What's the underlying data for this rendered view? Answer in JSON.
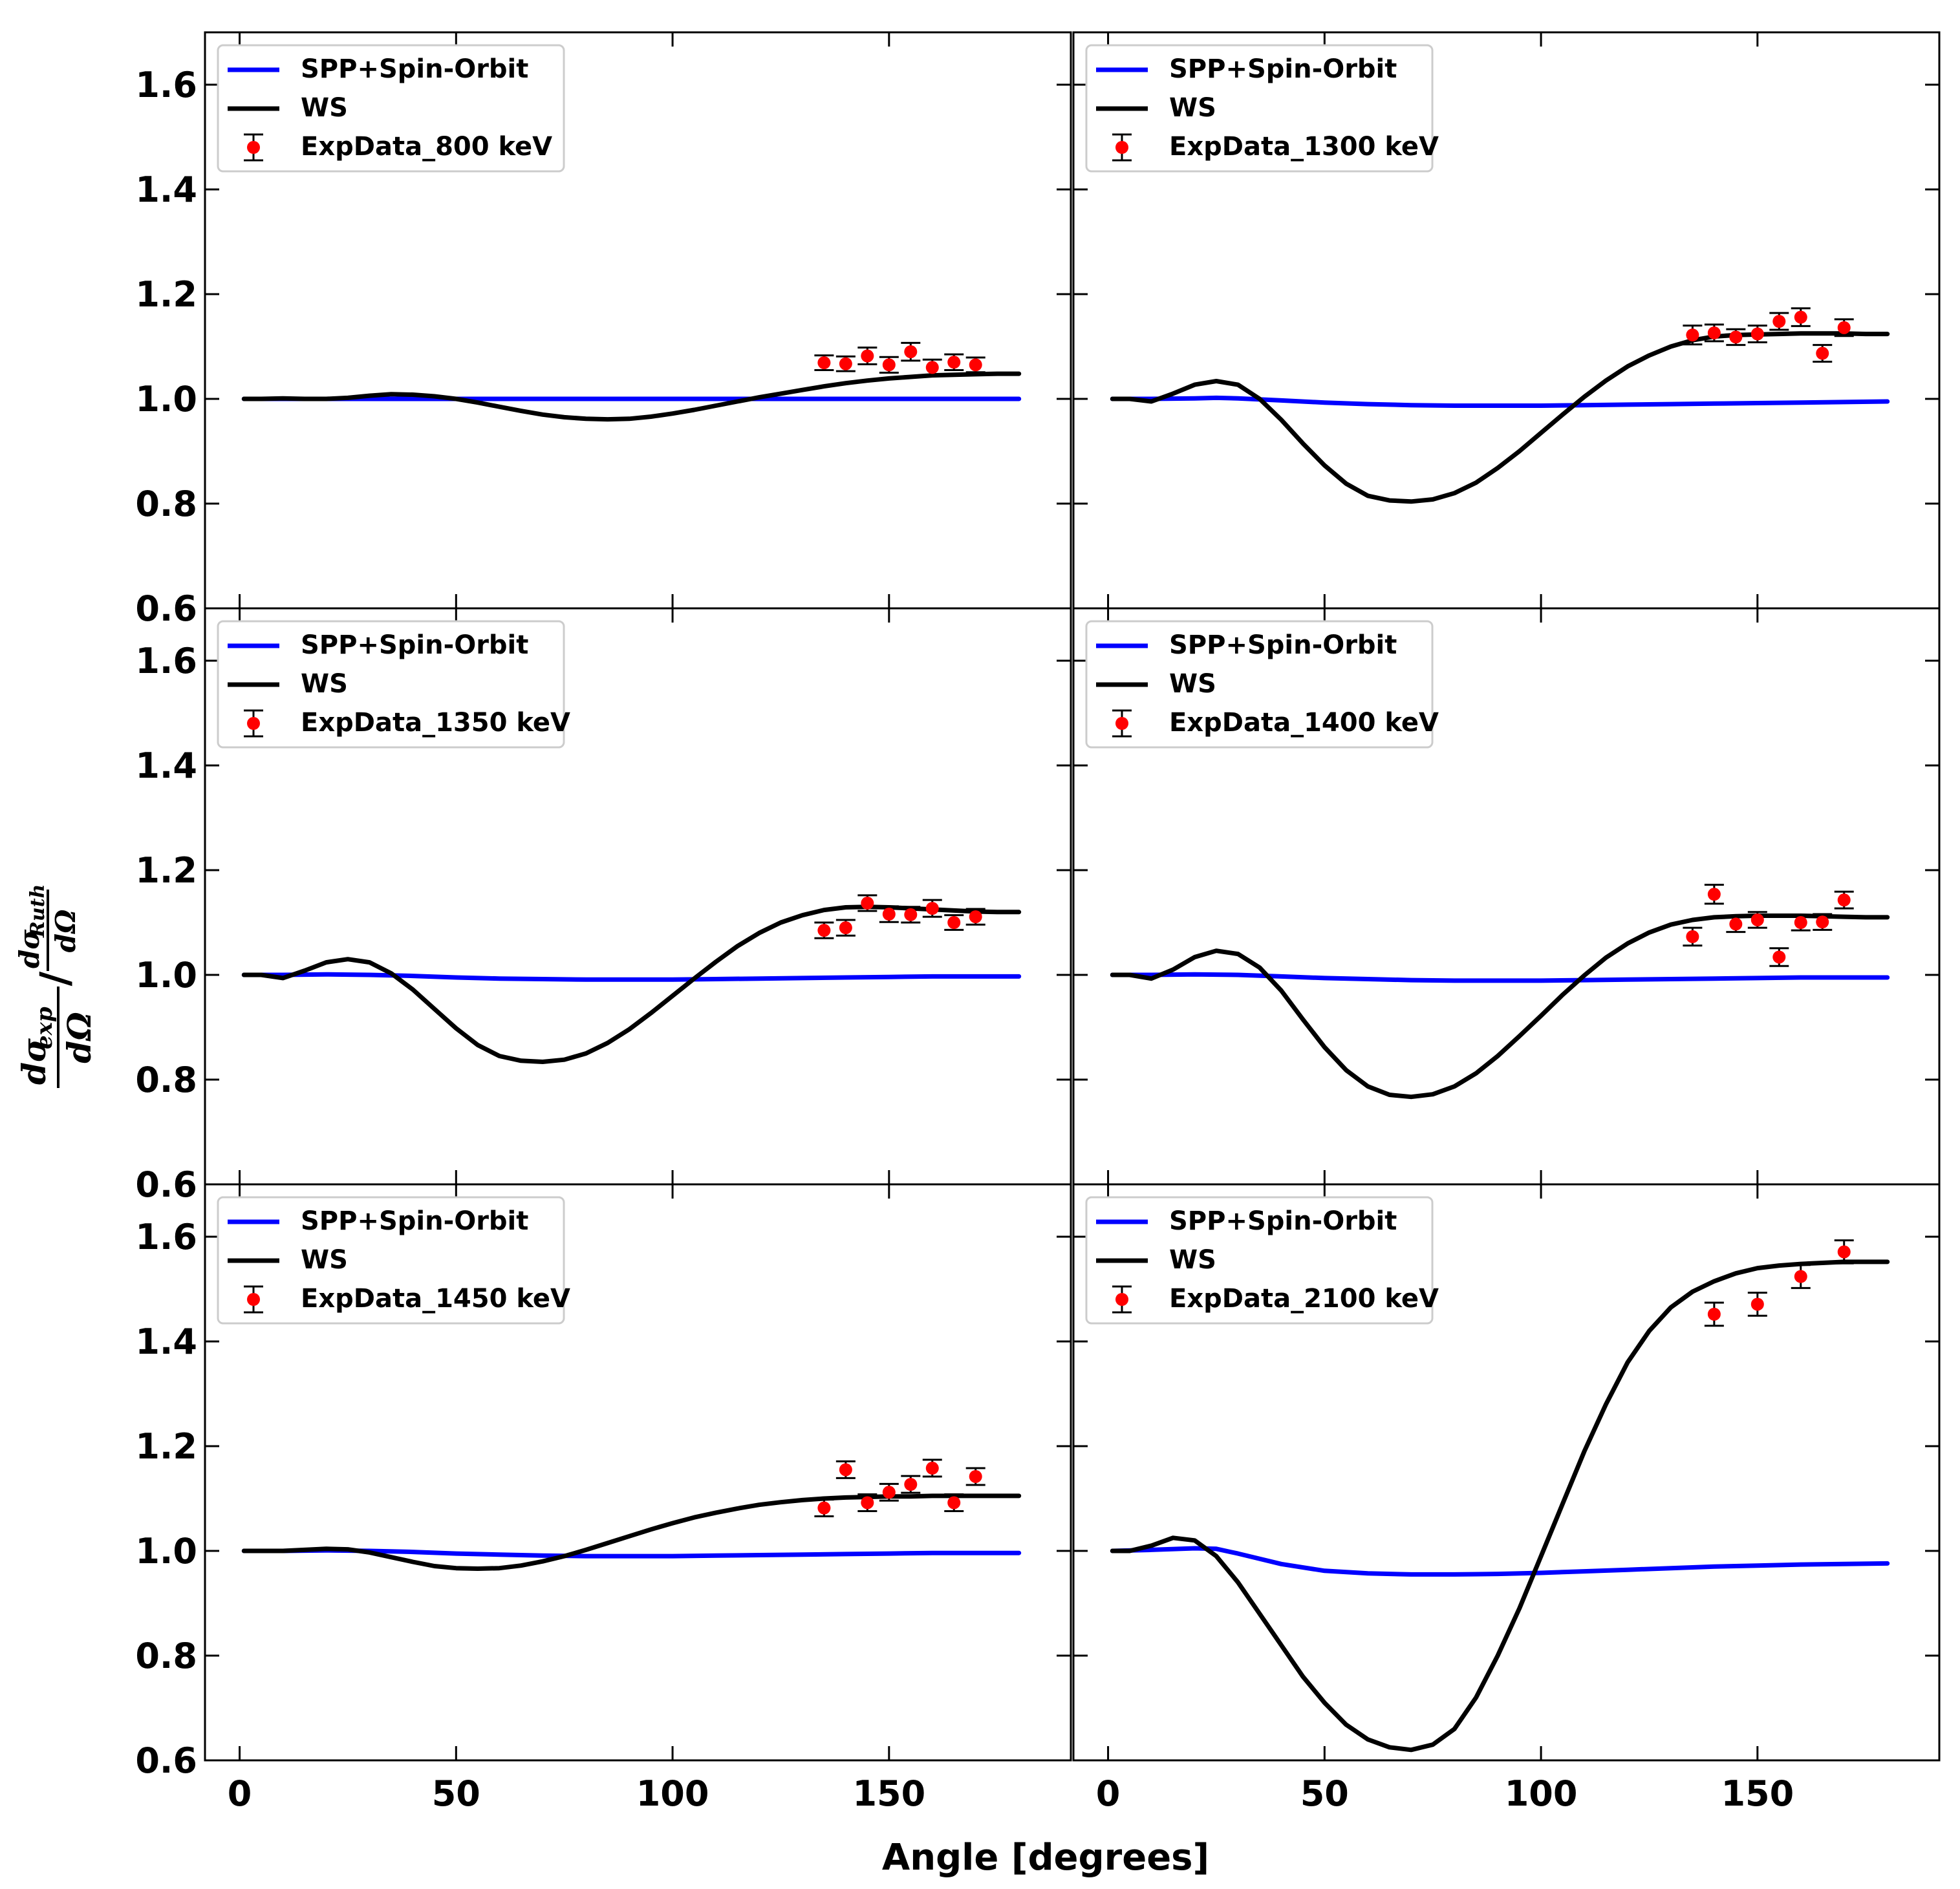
{
  "chart_data": {
    "type": "line",
    "layout": "3x2 grid, shared axes",
    "xlabel": "Angle [degrees]",
    "ylabel": {
      "num1": "dσ",
      "num1_sub": "exp",
      "den1": "dΩ",
      "sep": "/",
      "num2": "dσ",
      "num2_sub": "Ruth",
      "den2": "dΩ"
    },
    "xlim": [
      -8,
      192
    ],
    "ylim": [
      0.6,
      1.7
    ],
    "xticks": [
      0,
      50,
      100,
      150
    ],
    "yticks": [
      0.6,
      0.8,
      1.0,
      1.2,
      1.4,
      1.6
    ],
    "ytick_labels": [
      "0.6",
      "0.8",
      "1.0",
      "1.2",
      "1.4",
      "1.6"
    ],
    "series_styles": {
      "SPP+Spin-Orbit": "#0000ff",
      "WS": "#000000",
      "ExpData": "#ff0000"
    },
    "panels": [
      {
        "energy": "800 keV",
        "legend": [
          "SPP+Spin-Orbit",
          "WS",
          "ExpData_800 keV"
        ],
        "spp_x": [
          1,
          30,
          60,
          90,
          120,
          150,
          180
        ],
        "spp_y": [
          1.0,
          1.0,
          1.0,
          1.0,
          1.0,
          1.0,
          1.0
        ],
        "ws_x": [
          1,
          5,
          10,
          15,
          20,
          25,
          30,
          35,
          40,
          45,
          50,
          55,
          60,
          65,
          70,
          75,
          80,
          85,
          90,
          95,
          100,
          105,
          110,
          115,
          120,
          125,
          130,
          135,
          140,
          145,
          150,
          155,
          160,
          165,
          170,
          175,
          180
        ],
        "ws_y": [
          1.0,
          1.0,
          1.001,
          1.0,
          1.0,
          1.002,
          1.006,
          1.009,
          1.008,
          1.005,
          1.0,
          0.993,
          0.985,
          0.977,
          0.97,
          0.965,
          0.962,
          0.961,
          0.962,
          0.966,
          0.972,
          0.979,
          0.987,
          0.995,
          1.003,
          1.01,
          1.017,
          1.024,
          1.03,
          1.035,
          1.039,
          1.042,
          1.045,
          1.046,
          1.047,
          1.048,
          1.048
        ],
        "exp_x": [
          135,
          140,
          145,
          150,
          155,
          160,
          165,
          170
        ],
        "exp_y": [
          1.069,
          1.067,
          1.082,
          1.065,
          1.09,
          1.06,
          1.07,
          1.065
        ],
        "exp_err": [
          0.014,
          0.014,
          0.016,
          0.015,
          0.017,
          0.015,
          0.015,
          0.014
        ]
      },
      {
        "energy": "1300 keV",
        "legend": [
          "SPP+Spin-Orbit",
          "WS",
          "ExpData_1300 keV"
        ],
        "spp_x": [
          1,
          10,
          20,
          25,
          30,
          40,
          50,
          60,
          70,
          80,
          90,
          100,
          110,
          120,
          130,
          140,
          150,
          160,
          170,
          180
        ],
        "spp_y": [
          1.0,
          1.0,
          1.001,
          1.002,
          1.001,
          0.997,
          0.993,
          0.99,
          0.988,
          0.987,
          0.987,
          0.987,
          0.988,
          0.989,
          0.99,
          0.991,
          0.992,
          0.993,
          0.994,
          0.995
        ],
        "ws_x": [
          1,
          5,
          10,
          15,
          20,
          25,
          30,
          35,
          40,
          45,
          50,
          55,
          60,
          65,
          70,
          75,
          80,
          85,
          90,
          95,
          100,
          105,
          110,
          115,
          120,
          125,
          130,
          135,
          140,
          145,
          150,
          155,
          160,
          165,
          170,
          175,
          180
        ],
        "ws_y": [
          1.0,
          1.0,
          0.995,
          1.01,
          1.027,
          1.034,
          1.027,
          1.0,
          0.96,
          0.915,
          0.873,
          0.838,
          0.815,
          0.806,
          0.804,
          0.808,
          0.82,
          0.84,
          0.868,
          0.9,
          0.935,
          0.97,
          1.004,
          1.035,
          1.062,
          1.083,
          1.1,
          1.112,
          1.119,
          1.122,
          1.123,
          1.124,
          1.125,
          1.125,
          1.125,
          1.124,
          1.124
        ],
        "exp_x": [
          135,
          140,
          145,
          150,
          155,
          160,
          165,
          170
        ],
        "exp_y": [
          1.122,
          1.126,
          1.118,
          1.124,
          1.148,
          1.156,
          1.087,
          1.136
        ],
        "exp_err": [
          0.018,
          0.016,
          0.015,
          0.016,
          0.016,
          0.017,
          0.016,
          0.016
        ]
      },
      {
        "energy": "1350 keV",
        "legend": [
          "SPP+Spin-Orbit",
          "WS",
          "ExpData_1350 keV"
        ],
        "spp_x": [
          1,
          10,
          20,
          30,
          40,
          50,
          60,
          70,
          80,
          90,
          100,
          110,
          120,
          130,
          140,
          150,
          160,
          170,
          180
        ],
        "spp_y": [
          1.0,
          1.0,
          1.001,
          1.0,
          0.998,
          0.995,
          0.993,
          0.992,
          0.991,
          0.991,
          0.991,
          0.992,
          0.993,
          0.994,
          0.995,
          0.996,
          0.997,
          0.997,
          0.997
        ],
        "ws_x": [
          1,
          5,
          10,
          15,
          20,
          25,
          30,
          35,
          40,
          45,
          50,
          55,
          60,
          65,
          70,
          75,
          80,
          85,
          90,
          95,
          100,
          105,
          110,
          115,
          120,
          125,
          130,
          135,
          140,
          145,
          150,
          155,
          160,
          165,
          170,
          175,
          180
        ],
        "ws_y": [
          1.0,
          1.0,
          0.994,
          1.008,
          1.024,
          1.03,
          1.024,
          1.003,
          0.972,
          0.935,
          0.898,
          0.866,
          0.845,
          0.836,
          0.834,
          0.838,
          0.85,
          0.87,
          0.896,
          0.927,
          0.96,
          0.993,
          1.025,
          1.055,
          1.08,
          1.1,
          1.114,
          1.124,
          1.129,
          1.13,
          1.129,
          1.127,
          1.125,
          1.123,
          1.121,
          1.12,
          1.12
        ],
        "exp_x": [
          135,
          140,
          145,
          150,
          155,
          160,
          165,
          170
        ],
        "exp_y": [
          1.085,
          1.09,
          1.137,
          1.116,
          1.115,
          1.127,
          1.1,
          1.111
        ],
        "exp_err": [
          0.015,
          0.015,
          0.015,
          0.015,
          0.015,
          0.016,
          0.014,
          0.015
        ]
      },
      {
        "energy": "1400 keV",
        "legend": [
          "SPP+Spin-Orbit",
          "WS",
          "ExpData_1400 keV"
        ],
        "spp_x": [
          1,
          10,
          20,
          30,
          40,
          50,
          60,
          70,
          80,
          90,
          100,
          110,
          120,
          130,
          140,
          150,
          160,
          170,
          180
        ],
        "spp_y": [
          1.0,
          1.0,
          1.001,
          1.0,
          0.997,
          0.994,
          0.992,
          0.99,
          0.989,
          0.989,
          0.989,
          0.99,
          0.991,
          0.992,
          0.993,
          0.994,
          0.995,
          0.995,
          0.995
        ],
        "ws_x": [
          1,
          5,
          10,
          15,
          20,
          25,
          30,
          35,
          40,
          45,
          50,
          55,
          60,
          65,
          70,
          75,
          80,
          85,
          90,
          95,
          100,
          105,
          110,
          115,
          120,
          125,
          130,
          135,
          140,
          145,
          150,
          155,
          160,
          165,
          170,
          175,
          180
        ],
        "ws_y": [
          1.0,
          1.0,
          0.993,
          1.01,
          1.034,
          1.046,
          1.04,
          1.014,
          0.97,
          0.915,
          0.862,
          0.818,
          0.787,
          0.771,
          0.767,
          0.772,
          0.787,
          0.812,
          0.845,
          0.883,
          0.922,
          0.962,
          0.999,
          1.033,
          1.06,
          1.081,
          1.096,
          1.105,
          1.11,
          1.112,
          1.113,
          1.113,
          1.113,
          1.112,
          1.111,
          1.11,
          1.11
        ],
        "exp_x": [
          135,
          140,
          145,
          150,
          155,
          160,
          165,
          170
        ],
        "exp_y": [
          1.073,
          1.154,
          1.097,
          1.105,
          1.034,
          1.1,
          1.101,
          1.143
        ],
        "exp_err": [
          0.017,
          0.018,
          0.015,
          0.015,
          0.017,
          0.015,
          0.015,
          0.016
        ]
      },
      {
        "energy": "1450 keV",
        "legend": [
          "SPP+Spin-Orbit",
          "WS",
          "ExpData_1450 keV"
        ],
        "spp_x": [
          1,
          10,
          20,
          30,
          40,
          50,
          60,
          70,
          80,
          90,
          100,
          110,
          120,
          130,
          140,
          150,
          160,
          170,
          180
        ],
        "spp_y": [
          1.0,
          1.0,
          1.001,
          1.0,
          0.998,
          0.995,
          0.993,
          0.991,
          0.99,
          0.99,
          0.99,
          0.991,
          0.992,
          0.993,
          0.994,
          0.995,
          0.996,
          0.996,
          0.996
        ],
        "ws_x": [
          1,
          5,
          10,
          15,
          20,
          25,
          30,
          35,
          40,
          45,
          50,
          55,
          60,
          65,
          70,
          75,
          80,
          85,
          90,
          95,
          100,
          105,
          110,
          115,
          120,
          125,
          130,
          135,
          140,
          145,
          150,
          155,
          160,
          165,
          170,
          175,
          180
        ],
        "ws_y": [
          1.0,
          1.0,
          1.0,
          1.002,
          1.004,
          1.003,
          0.997,
          0.988,
          0.979,
          0.971,
          0.967,
          0.966,
          0.967,
          0.972,
          0.98,
          0.99,
          1.002,
          1.015,
          1.028,
          1.041,
          1.053,
          1.064,
          1.073,
          1.081,
          1.088,
          1.093,
          1.097,
          1.1,
          1.102,
          1.103,
          1.104,
          1.104,
          1.105,
          1.105,
          1.105,
          1.105,
          1.105
        ],
        "exp_x": [
          135,
          140,
          145,
          150,
          155,
          160,
          165,
          170
        ],
        "exp_y": [
          1.082,
          1.155,
          1.092,
          1.112,
          1.127,
          1.158,
          1.092,
          1.142
        ],
        "exp_err": [
          0.016,
          0.016,
          0.016,
          0.016,
          0.016,
          0.016,
          0.016,
          0.016
        ]
      },
      {
        "energy": "2100 keV",
        "legend": [
          "SPP+Spin-Orbit",
          "WS",
          "ExpData_2100 keV"
        ],
        "spp_x": [
          1,
          10,
          20,
          25,
          30,
          40,
          50,
          60,
          70,
          80,
          90,
          100,
          110,
          120,
          130,
          140,
          150,
          160,
          170,
          180
        ],
        "spp_y": [
          1.0,
          1.002,
          1.005,
          1.004,
          0.995,
          0.975,
          0.962,
          0.957,
          0.955,
          0.955,
          0.956,
          0.958,
          0.961,
          0.964,
          0.967,
          0.97,
          0.972,
          0.974,
          0.975,
          0.976
        ],
        "ws_x": [
          1,
          5,
          10,
          15,
          20,
          25,
          30,
          35,
          40,
          45,
          50,
          55,
          60,
          65,
          70,
          75,
          80,
          85,
          90,
          95,
          100,
          105,
          110,
          115,
          120,
          125,
          130,
          135,
          140,
          145,
          150,
          155,
          160,
          165,
          170,
          175,
          180
        ],
        "ws_y": [
          1.0,
          1.0,
          1.01,
          1.025,
          1.02,
          0.99,
          0.94,
          0.88,
          0.82,
          0.76,
          0.71,
          0.668,
          0.64,
          0.625,
          0.62,
          0.63,
          0.66,
          0.72,
          0.8,
          0.89,
          0.99,
          1.09,
          1.19,
          1.28,
          1.36,
          1.42,
          1.465,
          1.495,
          1.515,
          1.53,
          1.54,
          1.545,
          1.548,
          1.55,
          1.552,
          1.552,
          1.552
        ],
        "exp_x": [
          140,
          150,
          160,
          170
        ],
        "exp_y": [
          1.452,
          1.471,
          1.524,
          1.571
        ],
        "exp_err": [
          0.022,
          0.022,
          0.022,
          0.022
        ]
      }
    ]
  }
}
